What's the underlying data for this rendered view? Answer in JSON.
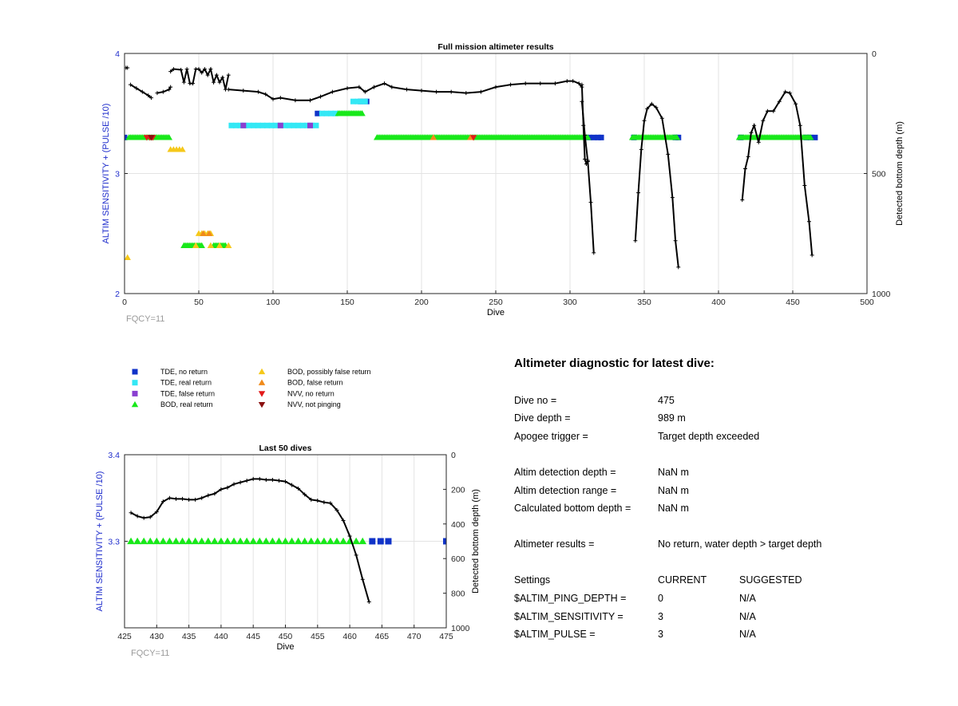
{
  "colors": {
    "axis_blue": "#1f2dcc",
    "tde_no_return": "#1033c8",
    "tde_real_return": "#33e8f5",
    "tde_false_return": "#8a3fd0",
    "bod_real_return": "#18e81a",
    "bod_possibly_false": "#f5c81a",
    "bod_false_return": "#f08a1a",
    "nvv_no_return": "#e21a1a",
    "nvv_not_pinging": "#8a1010",
    "depth_line": "#000000",
    "grid": "#e3e3e3",
    "fqcy": "#9a9a9a"
  },
  "legend": [
    {
      "label": "TDE, no return",
      "marker": "square",
      "color": "#1033c8"
    },
    {
      "label": "TDE, real return",
      "marker": "square",
      "color": "#33e8f5"
    },
    {
      "label": "TDE, false return",
      "marker": "square",
      "color": "#8a3fd0"
    },
    {
      "label": "BOD, real return",
      "marker": "triangle-up",
      "color": "#18e81a"
    },
    {
      "label": "BOD, possibly false return",
      "marker": "triangle-up",
      "color": "#f5c81a"
    },
    {
      "label": "BOD, false return",
      "marker": "triangle-up",
      "color": "#f08a1a"
    },
    {
      "label": "NVV, no return",
      "marker": "triangle-down",
      "color": "#e21a1a"
    },
    {
      "label": "NVV, not pinging",
      "marker": "triangle-down",
      "color": "#8a1010"
    }
  ],
  "diagnostic": {
    "title": "Altimeter diagnostic for latest dive:",
    "rows": [
      {
        "label": "Dive no =",
        "value": "475"
      },
      {
        "label": "Dive depth =",
        "value": "989 m"
      },
      {
        "label": "Apogee trigger =",
        "value": "Target depth exceeded"
      },
      {
        "label": "Altim detection depth =",
        "value": "NaN m"
      },
      {
        "label": "Altim detection range =",
        "value": "NaN m"
      },
      {
        "label": "Calculated bottom depth =",
        "value": "NaN m"
      },
      {
        "label": "Altimeter results =",
        "value": "No return, water depth > target depth"
      }
    ],
    "settings_header": {
      "label": "Settings",
      "current": "CURRENT",
      "suggested": "SUGGESTED"
    },
    "settings": [
      {
        "label": "$ALTIM_PING_DEPTH =",
        "current": "0",
        "suggested": "N/A"
      },
      {
        "label": "$ALTIM_SENSITIVITY =",
        "current": "3",
        "suggested": "N/A"
      },
      {
        "label": "$ALTIM_PULSE =",
        "current": "3",
        "suggested": "N/A"
      }
    ]
  },
  "chart_data": [
    {
      "id": "full_mission",
      "type": "scatter",
      "title": "Full mission altimeter results",
      "xlabel": "Dive",
      "ylabel": "ALTIM SENSITIVITY + (PULSE /10)",
      "y2label": "Detected bottom depth (m)",
      "note": "FQCY=11",
      "xlim": [
        0,
        500
      ],
      "ylim": [
        2,
        4
      ],
      "y2lim": [
        0,
        1000
      ],
      "y2_reversed": true,
      "xticks": [
        0,
        50,
        100,
        150,
        200,
        250,
        300,
        350,
        400,
        450,
        500
      ],
      "yticks": [
        2,
        3,
        4
      ],
      "y2ticks": [
        0,
        500,
        1000
      ],
      "grid": true,
      "series": [
        {
          "name": "TDE, no return",
          "marker": "square",
          "color": "#1033c8",
          "x": [
            0,
            130,
            159,
            163,
            313,
            316,
            319,
            321,
            343,
            371,
            373,
            415,
            459,
            462,
            465
          ],
          "y": [
            3.3,
            3.5,
            3.6,
            3.6,
            3.3,
            3.3,
            3.3,
            3.3,
            3.3,
            3.3,
            3.3,
            3.3,
            3.3,
            3.3,
            3.3
          ]
        },
        {
          "name": "TDE, real return",
          "marker": "square",
          "color": "#33e8f5",
          "x": [
            72,
            75,
            78,
            81,
            84,
            87,
            90,
            93,
            96,
            99,
            102,
            105,
            108,
            111,
            114,
            117,
            120,
            123,
            126,
            129,
            133,
            136,
            139,
            142,
            154,
            157,
            160,
            162
          ],
          "y": [
            3.4,
            3.4,
            3.4,
            3.4,
            3.4,
            3.4,
            3.4,
            3.4,
            3.4,
            3.4,
            3.4,
            3.4,
            3.4,
            3.4,
            3.4,
            3.4,
            3.4,
            3.4,
            3.4,
            3.4,
            3.5,
            3.5,
            3.5,
            3.5,
            3.6,
            3.6,
            3.6,
            3.6
          ]
        },
        {
          "name": "TDE, false return",
          "marker": "square",
          "color": "#8a3fd0",
          "x": [
            80,
            105,
            125
          ],
          "y": [
            3.4,
            3.4,
            3.4
          ]
        },
        {
          "name": "BOD, real return",
          "marker": "triangle-up",
          "color": "#18e81a",
          "ranges": [
            {
              "x0": 3,
              "x1": 30,
              "y": 3.3
            },
            {
              "x0": 144,
              "x1": 160,
              "y": 3.5
            },
            {
              "x0": 170,
              "x1": 312,
              "y": 3.3
            },
            {
              "x0": 342,
              "x1": 372,
              "y": 3.3
            },
            {
              "x0": 414,
              "x1": 462,
              "y": 3.3
            },
            {
              "x0": 40,
              "x1": 52,
              "y": 2.4
            },
            {
              "x0": 60,
              "x1": 68,
              "y": 2.4
            }
          ]
        },
        {
          "name": "BOD, possibly false return",
          "marker": "triangle-up",
          "color": "#f5c81a",
          "x": [
            2,
            31,
            33,
            35,
            37,
            39,
            50,
            52,
            54,
            56,
            58,
            48,
            58,
            64,
            70
          ],
          "y": [
            2.3,
            3.2,
            3.2,
            3.2,
            3.2,
            3.2,
            2.5,
            2.5,
            2.5,
            2.5,
            2.5,
            2.4,
            2.4,
            2.4,
            2.4
          ]
        },
        {
          "name": "BOD, false return",
          "marker": "triangle-up",
          "color": "#f08a1a",
          "x": [
            53,
            57,
            208,
            233
          ],
          "y": [
            2.5,
            2.5,
            3.3,
            3.3
          ]
        },
        {
          "name": "NVV, no return",
          "marker": "triangle-down",
          "color": "#e21a1a",
          "x": [
            15,
            17,
            19,
            235
          ],
          "y": [
            3.3,
            3.3,
            3.3,
            3.3
          ]
        },
        {
          "name": "NVV, not pinging",
          "marker": "triangle-down",
          "color": "#8a1010",
          "x": [
            18
          ],
          "y": [
            3.3
          ]
        },
        {
          "name": "Detected bottom depth (m)",
          "marker": "plus-line",
          "color": "#000000",
          "axis": "right",
          "segments": [
            {
              "x": [
                1,
                2
              ],
              "y": [
                60,
                60
              ]
            },
            {
              "x": [
                4,
                8,
                12,
                16,
                18
              ],
              "y": [
                130,
                145,
                160,
                175,
                185
              ]
            },
            {
              "x": [
                22,
                26,
                30,
                31
              ],
              "y": [
                165,
                160,
                150,
                140
              ]
            },
            {
              "x": [
                31,
                33,
                38,
                40,
                42,
                44,
                46,
                48,
                50,
                52,
                54,
                56,
                58,
                60,
                62,
                64,
                66,
                68,
                70
              ],
              "y": [
                75,
                65,
                68,
                120,
                65,
                125,
                125,
                65,
                65,
                80,
                65,
                90,
                65,
                120,
                90,
                120,
                100,
                150,
                90
              ]
            },
            {
              "x": [
                70,
                80,
                90,
                95,
                100,
                105,
                115,
                125,
                132,
                140,
                150,
                158,
                162,
                168,
                175,
                180,
                190,
                200,
                210,
                220,
                230,
                240,
                250,
                260,
                270,
                280,
                290,
                298,
                302,
                306,
                308
              ],
              "y": [
                150,
                155,
                160,
                170,
                190,
                185,
                195,
                195,
                180,
                160,
                145,
                140,
                160,
                140,
                125,
                140,
                150,
                155,
                160,
                160,
                165,
                160,
                140,
                130,
                125,
                125,
                125,
                115,
                115,
                125,
                140
              ]
            },
            {
              "x": [
                308,
                310,
                312,
                314,
                316
              ],
              "y": [
                200,
                340,
                450,
                620,
                830
              ]
            },
            {
              "x": [
                308,
                309,
                310,
                311,
                312
              ],
              "y": [
                130,
                300,
                440,
                460,
                445
              ]
            },
            {
              "x": [
                344,
                346,
                348,
                350,
                352,
                355,
                358,
                362,
                366,
                369,
                371,
                373
              ],
              "y": [
                780,
                580,
                400,
                280,
                230,
                210,
                225,
                270,
                420,
                600,
                780,
                890
              ]
            },
            {
              "x": [
                416,
                418,
                420,
                422,
                424,
                427,
                430,
                433,
                437,
                441,
                445,
                448,
                452,
                455,
                458,
                461,
                463
              ],
              "y": [
                610,
                480,
                430,
                330,
                300,
                370,
                280,
                240,
                240,
                200,
                160,
                165,
                210,
                300,
                550,
                700,
                840
              ]
            }
          ]
        }
      ]
    },
    {
      "id": "last_50",
      "type": "scatter",
      "title": "Last 50 dives",
      "xlabel": "Dive",
      "ylabel": "ALTIM SENSITIVITY + (PULSE /10)",
      "y2label": "Detected bottom depth (m)",
      "note": "FQCY=11",
      "xlim": [
        425,
        475
      ],
      "ylim": [
        3.2,
        3.4
      ],
      "y2lim": [
        0,
        1000
      ],
      "y2_reversed": true,
      "xticks": [
        425,
        430,
        435,
        440,
        445,
        450,
        455,
        460,
        465,
        470,
        475
      ],
      "yticks": [
        3.3,
        3.4
      ],
      "y2ticks": [
        0,
        200,
        400,
        600,
        800,
        1000
      ],
      "grid": true,
      "series": [
        {
          "name": "BOD, real return",
          "marker": "triangle-up",
          "color": "#18e81a",
          "x": [
            426,
            427,
            428,
            429,
            430,
            431,
            432,
            433,
            434,
            435,
            436,
            437,
            438,
            439,
            440,
            441,
            442,
            443,
            444,
            445,
            446,
            447,
            448,
            449,
            450,
            451,
            452,
            453,
            454,
            455,
            456,
            457,
            458,
            459,
            460,
            461,
            462
          ],
          "y": [
            3.3,
            3.3,
            3.3,
            3.3,
            3.3,
            3.3,
            3.3,
            3.3,
            3.3,
            3.3,
            3.3,
            3.3,
            3.3,
            3.3,
            3.3,
            3.3,
            3.3,
            3.3,
            3.3,
            3.3,
            3.3,
            3.3,
            3.3,
            3.3,
            3.3,
            3.3,
            3.3,
            3.3,
            3.3,
            3.3,
            3.3,
            3.3,
            3.3,
            3.3,
            3.3,
            3.3,
            3.3
          ]
        },
        {
          "name": "TDE, no return",
          "marker": "square",
          "color": "#1033c8",
          "x": [
            463.5,
            464.8,
            466,
            475
          ],
          "y": [
            3.3,
            3.3,
            3.3,
            3.3
          ]
        },
        {
          "name": "Detected bottom depth (m)",
          "marker": "plus-line",
          "color": "#000000",
          "axis": "right",
          "x": [
            426,
            427,
            428,
            429,
            430,
            431,
            432,
            433,
            434,
            435,
            436,
            437,
            438,
            439,
            440,
            441,
            442,
            443,
            444,
            445,
            446,
            447,
            448,
            449,
            450,
            451,
            452,
            453,
            454,
            455,
            456,
            457,
            458,
            459,
            460,
            461,
            462,
            463
          ],
          "y": [
            335,
            355,
            365,
            360,
            330,
            270,
            250,
            255,
            255,
            260,
            260,
            250,
            235,
            225,
            200,
            190,
            170,
            160,
            150,
            140,
            140,
            145,
            145,
            150,
            155,
            175,
            195,
            230,
            260,
            265,
            275,
            280,
            320,
            380,
            470,
            580,
            720,
            850
          ]
        }
      ]
    }
  ]
}
